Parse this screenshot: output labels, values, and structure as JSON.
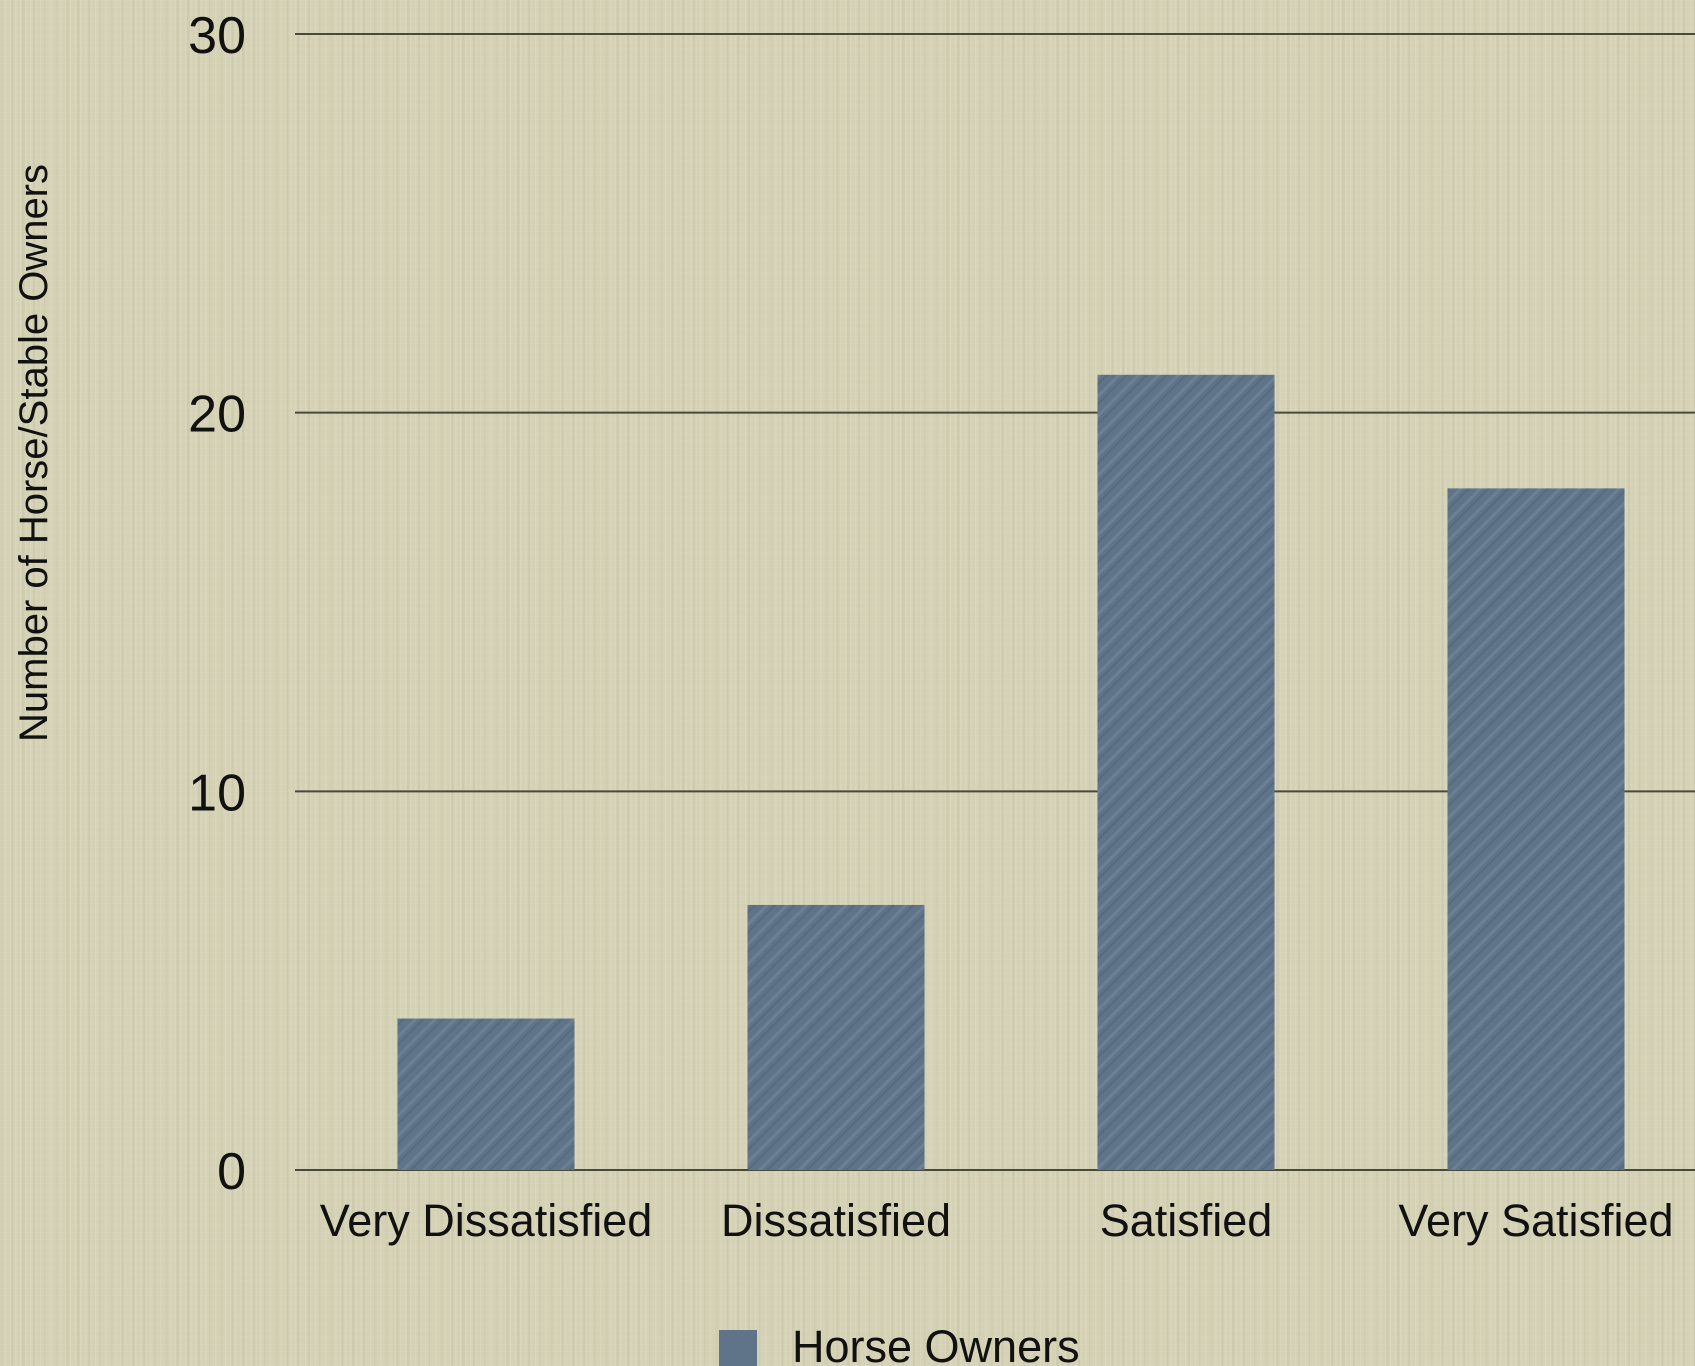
{
  "chart_data": {
    "type": "bar",
    "categories": [
      "Very Dissatisfied",
      "Dissatisfied",
      "Satisfied",
      "Very Satisfied"
    ],
    "series": [
      {
        "name": "Horse Owners",
        "values": [
          4,
          7,
          21,
          18
        ],
        "color": "#5f7489"
      }
    ],
    "ylabel": "Number of Horse/Stable Owners",
    "xlabel": "",
    "ylim": [
      0,
      30
    ],
    "yticks": [
      0,
      10,
      20,
      30
    ],
    "grid": true,
    "legend": "bottom-center"
  }
}
